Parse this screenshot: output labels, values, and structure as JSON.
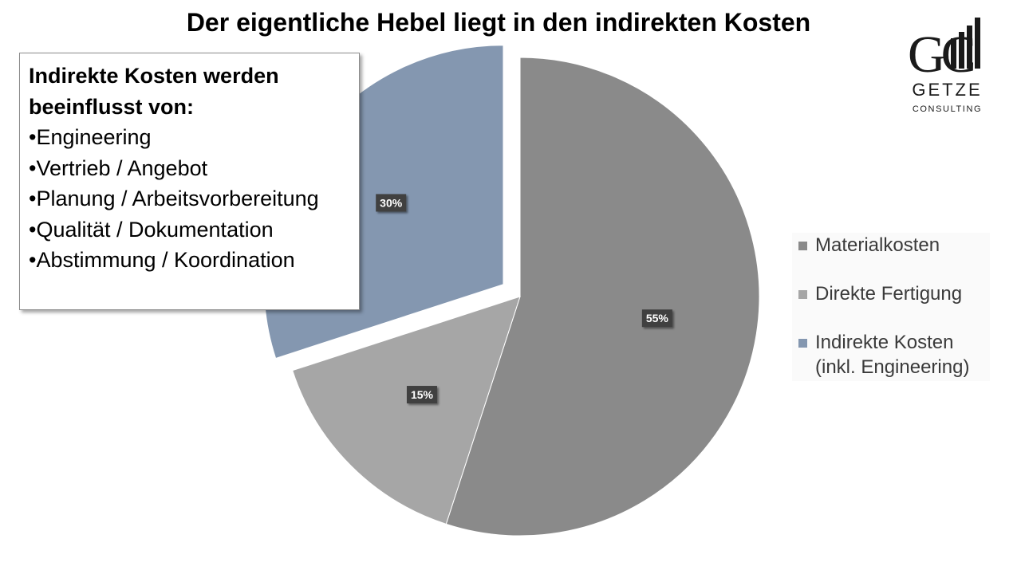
{
  "slide": {
    "title": "Der eigentliche Hebel liegt in den indirekten Kosten"
  },
  "callout": {
    "heading": "Indirekte Kosten werden beeinflusst von:",
    "items": [
      "•Engineering",
      "•Vertrieb / Angebot",
      "•Planung / Arbeitsvorbereitung",
      "•Qualität / Dokumentation",
      "•Abstimmung / Koordination"
    ]
  },
  "logo": {
    "monogram": "GC",
    "name": "GETZE",
    "subtitle": "CONSULTING"
  },
  "chart_data": {
    "type": "pie",
    "title": "Der eigentliche Hebel liegt in den indirekten Kosten",
    "categories": [
      "Materialkosten",
      "Direkte Fertigung",
      "Indirekte Kosten (inkl. Engineering)"
    ],
    "values": [
      55,
      15,
      30
    ],
    "data_labels": [
      "55%",
      "15%",
      "30%"
    ],
    "exploded": [
      false,
      false,
      true
    ],
    "colors": [
      "#8a8a8a",
      "#a6a6a6",
      "#8497b0"
    ],
    "legend_position": "right",
    "legend": [
      {
        "label": "Materialkosten",
        "color": "#8a8a8a"
      },
      {
        "label": "Direkte Fertigung",
        "color": "#a6a6a6"
      },
      {
        "label": "Indirekte Kosten (inkl. Engineering)",
        "color": "#8497b0"
      }
    ]
  }
}
